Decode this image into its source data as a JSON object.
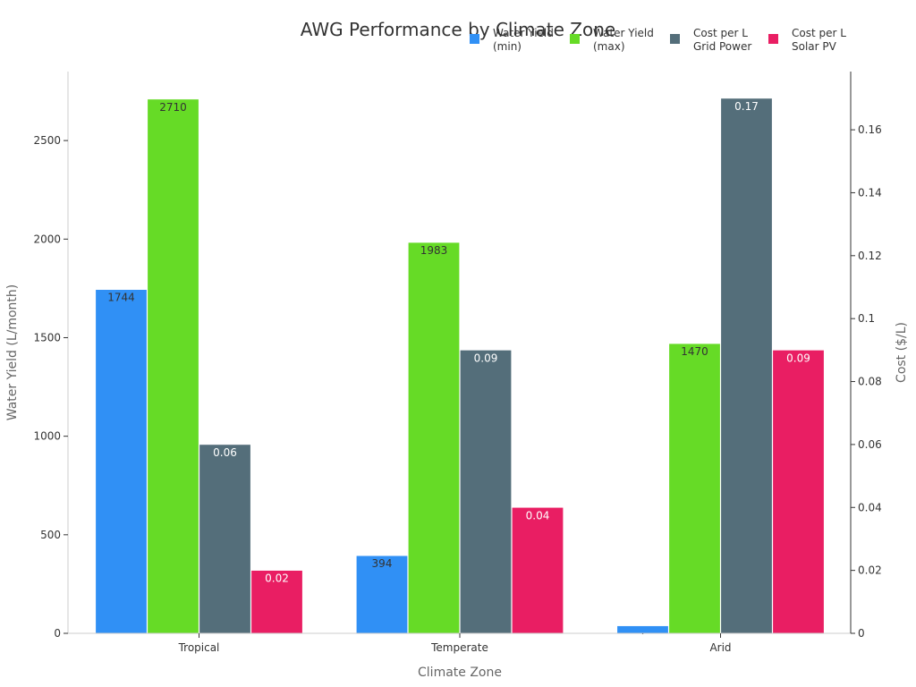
{
  "chart_data": {
    "type": "bar",
    "title": "AWG Performance by Climate Zone",
    "xlabel": "Climate Zone",
    "ylabel": "Water Yield (L/month)",
    "y2label": "Cost ($/L)",
    "categories": [
      "Tropical",
      "Temperate",
      "Arid"
    ],
    "ylim": [
      0,
      2850
    ],
    "y2lim": [
      0,
      0.1785
    ],
    "yticks": [
      "0",
      "500",
      "1000",
      "1500",
      "2000",
      "2500"
    ],
    "y2ticks": [
      "0",
      "0.02",
      "0.04",
      "0.06",
      "0.08",
      "0.1",
      "0.12",
      "0.14",
      "0.16"
    ],
    "legend_position": "top-right",
    "grid": false,
    "series": [
      {
        "name": "Water Yield\n(min)",
        "axis": "left",
        "color": "#3090F5",
        "values": [
          1744,
          394,
          38
        ],
        "labels": [
          "1744",
          "394",
          "·"
        ],
        "label_color": "#333333"
      },
      {
        "name": "Water Yield\n(max)",
        "axis": "left",
        "color": "#66DB26",
        "values": [
          2710,
          1983,
          1470
        ],
        "labels": [
          "2710",
          "1983",
          "1470"
        ],
        "label_color": "#333333"
      },
      {
        "name": "Cost per L\nGrid Power",
        "axis": "right",
        "color": "#546E7A",
        "values": [
          0.06,
          0.09,
          0.17
        ],
        "labels": [
          "0.06",
          "0.09",
          "0.17"
        ],
        "label_color": "#ffffff"
      },
      {
        "name": "Cost per L\nSolar PV",
        "axis": "right",
        "color": "#E91E63",
        "values": [
          0.02,
          0.04,
          0.09
        ],
        "labels": [
          "0.02",
          "0.04",
          "0.09"
        ],
        "label_color": "#ffffff"
      }
    ]
  }
}
